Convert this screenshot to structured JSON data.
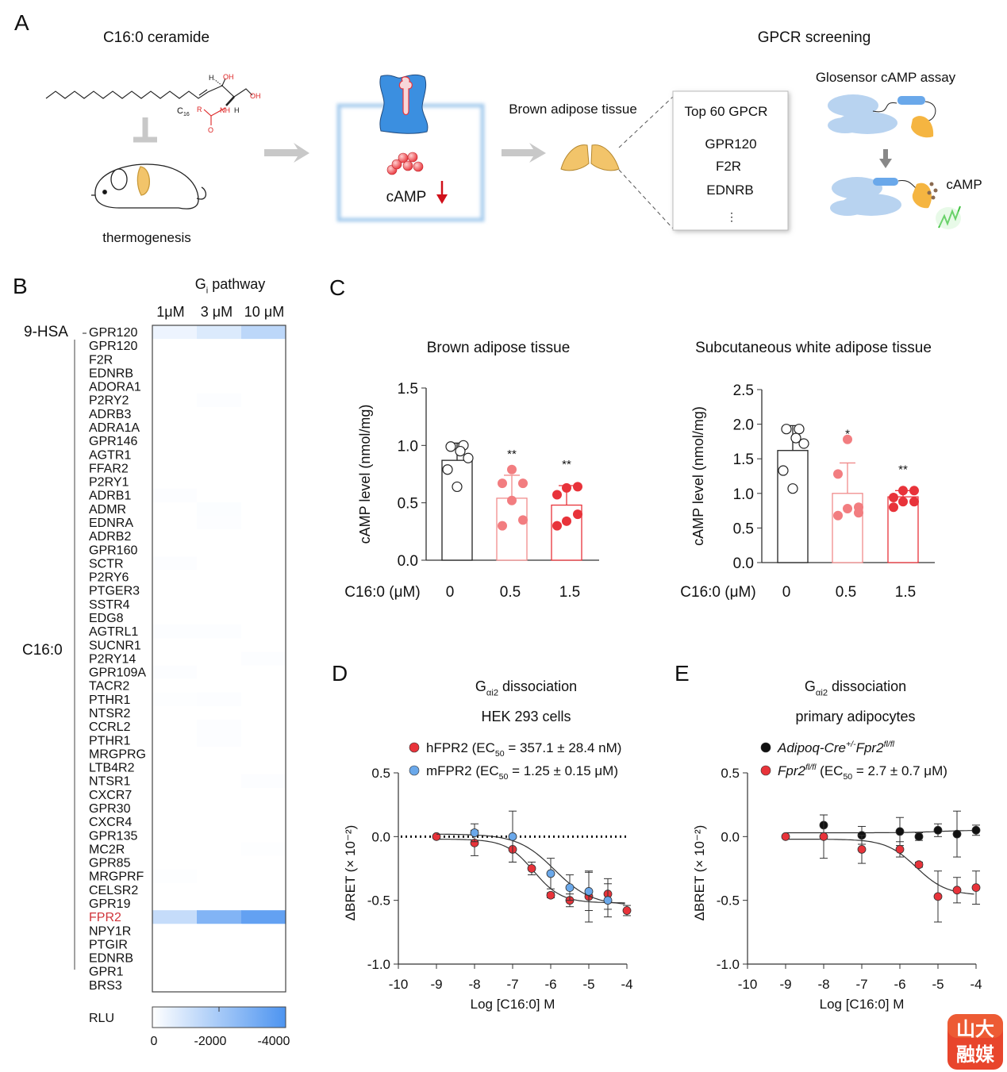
{
  "panel_labels": {
    "a": "A",
    "b": "B",
    "c": "C",
    "d": "D",
    "e": "E"
  },
  "panel_a": {
    "ceramide_title": "C16:0 ceramide",
    "structure_labels": {
      "h1": "H",
      "oh1": "OH",
      "oh2": "OH",
      "c16_main": "C",
      "c16_sub": "16",
      "r": "R",
      "nh": "NH",
      "h2": "H",
      "o": "O"
    },
    "thermogenesis": "thermogenesis",
    "camp": "cAMP",
    "brown_adipose_tissue": "Brown adipose tissue",
    "gpcr_screening": "GPCR screening",
    "box_title": "Top 60 GPCR",
    "box_items": [
      "GPR120",
      "F2R",
      "EDNRB",
      "⋮"
    ],
    "glosensor": "Glosensor cAMP assay",
    "camp_signal": "cAMP",
    "colors": {
      "receptor": "#3b8fe0",
      "camp": "#e8333a",
      "adipose": "#f2c46a",
      "arrow": "#c8c8c8"
    }
  },
  "watermark": {
    "text": "山大融媒",
    "color": "#e8452c"
  },
  "chart_data": [
    {
      "type": "heatmap",
      "title": {
        "main": "G",
        "sub": "i",
        "rest": " pathway"
      },
      "columns": [
        "1μM",
        "3 μM",
        "10 μM"
      ],
      "groups": [
        {
          "label": "9-HSA",
          "rows": [
            0,
            0
          ]
        },
        {
          "label": "C16:0",
          "rows": [
            1,
            48
          ]
        }
      ],
      "highlight_color": "#d0343a",
      "rows": [
        {
          "label": "GPR120",
          "values": [
            -400,
            -800,
            -1500
          ]
        },
        {
          "label": "GPR120",
          "values": [
            0,
            0,
            0
          ]
        },
        {
          "label": "F2R",
          "values": [
            0,
            0,
            0
          ]
        },
        {
          "label": "EDNRB",
          "values": [
            0,
            0,
            0
          ]
        },
        {
          "label": "ADORA1",
          "values": [
            0,
            0,
            0
          ]
        },
        {
          "label": "P2RY2",
          "values": [
            0,
            -60,
            0
          ]
        },
        {
          "label": "ADRB3",
          "values": [
            0,
            0,
            0
          ]
        },
        {
          "label": "ADRA1A",
          "values": [
            0,
            0,
            0
          ]
        },
        {
          "label": "GPR146",
          "values": [
            0,
            0,
            0
          ]
        },
        {
          "label": "AGTR1",
          "values": [
            0,
            0,
            0
          ]
        },
        {
          "label": "FFAR2",
          "values": [
            0,
            0,
            0
          ]
        },
        {
          "label": "P2RY1",
          "values": [
            0,
            0,
            0
          ]
        },
        {
          "label": "ADRB1",
          "values": [
            -60,
            0,
            0
          ]
        },
        {
          "label": "ADMR",
          "values": [
            0,
            -80,
            0
          ]
        },
        {
          "label": "EDNRA",
          "values": [
            0,
            -60,
            0
          ]
        },
        {
          "label": "ADRB2",
          "values": [
            0,
            0,
            0
          ]
        },
        {
          "label": "GPR160",
          "values": [
            0,
            0,
            0
          ]
        },
        {
          "label": "SCTR",
          "values": [
            -60,
            0,
            0
          ]
        },
        {
          "label": "P2RY6",
          "values": [
            0,
            0,
            0
          ]
        },
        {
          "label": "PTGER3",
          "values": [
            0,
            0,
            0
          ]
        },
        {
          "label": "SSTR4",
          "values": [
            0,
            0,
            0
          ]
        },
        {
          "label": "EDG8",
          "values": [
            0,
            0,
            0
          ]
        },
        {
          "label": "AGTRL1",
          "values": [
            -60,
            -60,
            0
          ]
        },
        {
          "label": "SUCNR1",
          "values": [
            0,
            0,
            0
          ]
        },
        {
          "label": "P2RY14",
          "values": [
            0,
            0,
            -60
          ]
        },
        {
          "label": "GPR109A",
          "values": [
            -60,
            0,
            0
          ]
        },
        {
          "label": "TACR2",
          "values": [
            0,
            0,
            0
          ]
        },
        {
          "label": "PTHR1",
          "values": [
            -40,
            -60,
            0
          ]
        },
        {
          "label": "NTSR2",
          "values": [
            0,
            0,
            0
          ]
        },
        {
          "label": "CCRL2",
          "values": [
            0,
            -70,
            0
          ]
        },
        {
          "label": "PTHR1",
          "values": [
            0,
            -60,
            0
          ]
        },
        {
          "label": "MRGPRG",
          "values": [
            0,
            0,
            0
          ]
        },
        {
          "label": "LTB4R2",
          "values": [
            0,
            0,
            0
          ]
        },
        {
          "label": "NTSR1",
          "values": [
            0,
            0,
            -60
          ]
        },
        {
          "label": "CXCR7",
          "values": [
            0,
            0,
            0
          ]
        },
        {
          "label": "GPR30",
          "values": [
            0,
            0,
            0
          ]
        },
        {
          "label": "CXCR4",
          "values": [
            0,
            0,
            0
          ]
        },
        {
          "label": "GPR135",
          "values": [
            0,
            0,
            0
          ]
        },
        {
          "label": "MC2R",
          "values": [
            0,
            0,
            -50
          ]
        },
        {
          "label": "GPR85",
          "values": [
            0,
            0,
            0
          ]
        },
        {
          "label": "MRGPRF",
          "values": [
            -50,
            0,
            0
          ]
        },
        {
          "label": "CELSR2",
          "values": [
            0,
            0,
            0
          ]
        },
        {
          "label": "GPR19",
          "values": [
            0,
            0,
            0
          ]
        },
        {
          "label": "FPR2",
          "values": [
            -1300,
            -2800,
            -3500
          ],
          "highlight": true
        },
        {
          "label": "NPY1R",
          "values": [
            0,
            0,
            0
          ]
        },
        {
          "label": "PTGIR",
          "values": [
            0,
            0,
            0
          ]
        },
        {
          "label": "EDNRB",
          "values": [
            0,
            0,
            0
          ]
        },
        {
          "label": "GPR1",
          "values": [
            0,
            0,
            0
          ]
        },
        {
          "label": "BRS3",
          "values": [
            0,
            0,
            0
          ]
        }
      ],
      "colorbar": {
        "label": "RLU",
        "range": [
          0,
          -4000
        ],
        "ticks": [
          "0",
          "-2000",
          "-4000"
        ],
        "colors": [
          "#ffffff",
          "#4d94f0"
        ]
      }
    },
    {
      "type": "bar",
      "title": "Brown adipose tissue",
      "xlabel": "C16:0 (μM)",
      "ylabel": "cAMP level (nmol/mg)",
      "categories": [
        "0",
        "0.5",
        "1.5"
      ],
      "ylim": [
        0,
        1.5
      ],
      "yticks": [
        "0.0",
        "0.5",
        "1.0",
        "1.5"
      ],
      "means": [
        0.87,
        0.54,
        0.48
      ],
      "sd": [
        0.15,
        0.2,
        0.17
      ],
      "points": [
        [
          0.99,
          1.0,
          0.95,
          0.89,
          0.79,
          0.64
        ],
        [
          0.79,
          0.67,
          0.67,
          0.52,
          0.35,
          0.3
        ],
        [
          0.63,
          0.64,
          0.57,
          0.4,
          0.34,
          0.3
        ]
      ],
      "significance": [
        "",
        "**",
        "**"
      ],
      "colors": [
        "#222222",
        "#f08c8c",
        "#e8333a"
      ]
    },
    {
      "type": "bar",
      "title": "Subcutaneous white adipose tissue",
      "xlabel": "C16:0 (μM)",
      "ylabel": "cAMP level (nmol/mg)",
      "categories": [
        "0",
        "0.5",
        "1.5"
      ],
      "ylim": [
        0,
        2.5
      ],
      "yticks": [
        "0.0",
        "0.5",
        "1.0",
        "1.5",
        "2.0",
        "2.5"
      ],
      "means": [
        1.62,
        1.0,
        0.95
      ],
      "sd": [
        0.36,
        0.44,
        0.09
      ],
      "points": [
        [
          1.93,
          1.93,
          1.8,
          1.72,
          1.33,
          1.07
        ],
        [
          1.78,
          1.28,
          0.8,
          0.78,
          0.72,
          0.68
        ],
        [
          1.04,
          1.04,
          0.94,
          0.88,
          0.88,
          0.8
        ]
      ],
      "significance": [
        "",
        "*",
        "**"
      ],
      "colors": [
        "#222222",
        "#f08c8c",
        "#e8333a"
      ]
    },
    {
      "type": "line",
      "title": {
        "main": "G",
        "sub": "αi2",
        "rest": " dissociation"
      },
      "subtitle": "HEK 293 cells",
      "xlabel": "Log [C16:0] M",
      "ylabel": "ΔBRET (× 10⁻²)",
      "xlim": [
        -10,
        -4
      ],
      "ylim": [
        -1.0,
        0.5
      ],
      "xticks": [
        "-10",
        "-9",
        "-8",
        "-7",
        "-6",
        "-5",
        "-4"
      ],
      "yticks": [
        "-1.0",
        "-0.5",
        "0.0",
        "0.5"
      ],
      "baseline_dotted": 0,
      "series": [
        {
          "name": {
            "pre": "hFPR2 (EC",
            "sub": "50",
            "post": " = 357.1 ± 28.4 nM)"
          },
          "color": "#e8333a",
          "x": [
            -9,
            -8,
            -7,
            -6.5,
            -6,
            -5.5,
            -5,
            -4.5,
            -4
          ],
          "y": [
            0,
            -0.05,
            -0.1,
            -0.25,
            -0.46,
            -0.5,
            -0.47,
            -0.45,
            -0.58
          ],
          "err": [
            0,
            0.1,
            0.1,
            0.05,
            0.02,
            0.05,
            0.2,
            0.12,
            0.04
          ],
          "fit": {
            "top": -0.02,
            "bottom": -0.52,
            "logEC50": -6.45,
            "hill": 1.2
          }
        },
        {
          "name": {
            "pre": "mFPR2 (EC",
            "sub": "50",
            "post": " = 1.25 ± 0.15 μM)"
          },
          "color": "#6aa8ea",
          "x": [
            -8,
            -7,
            -6,
            -5.5,
            -5,
            -4.5
          ],
          "y": [
            0.03,
            0.0,
            -0.29,
            -0.4,
            -0.43,
            -0.5
          ],
          "err": [
            0.07,
            0.2,
            0.12,
            0.1,
            0.15,
            0.13
          ],
          "fit": {
            "top": 0.02,
            "bottom": -0.54,
            "logEC50": -5.9,
            "hill": 0.9
          }
        }
      ]
    },
    {
      "type": "line",
      "title": {
        "main": "G",
        "sub": "αi2",
        "rest": " dissociation"
      },
      "subtitle": "primary adipocytes",
      "xlabel": "Log [C16:0] M",
      "ylabel": "ΔBRET (× 10⁻²)",
      "xlim": [
        -10,
        -4
      ],
      "ylim": [
        -1.0,
        0.5
      ],
      "xticks": [
        "-10",
        "-9",
        "-8",
        "-7",
        "-6",
        "-5",
        "-4"
      ],
      "yticks": [
        "-1.0",
        "-0.5",
        "0.0",
        "0.5"
      ],
      "series": [
        {
          "name": {
            "pre": "Adipoq-Cre",
            "sup": "+/-",
            "pre2": "Fpr2",
            "sup2": "fl/fl"
          },
          "color": "#111111",
          "x": [
            -8,
            -7,
            -6,
            -5.5,
            -5,
            -4.5,
            -4
          ],
          "y": [
            0.09,
            0.01,
            0.04,
            0.0,
            0.05,
            0.02,
            0.05
          ],
          "err": [
            0.08,
            0.07,
            0.11,
            0.03,
            0.05,
            0.18,
            0.04
          ],
          "fit": {
            "top": 0.03,
            "bottom": 0.05,
            "logEC50": -5,
            "hill": 1
          }
        },
        {
          "name": {
            "pre": "Fpr2",
            "sup": "fl/fl",
            "post": " (EC",
            "sub": "50",
            "post2": " = 2.7 ± 0.7 μM)"
          },
          "color": "#e8333a",
          "x": [
            -9,
            -8,
            -7,
            -6,
            -5.5,
            -5,
            -4.5,
            -4
          ],
          "y": [
            0,
            0,
            -0.1,
            -0.1,
            -0.22,
            -0.47,
            -0.42,
            -0.4
          ],
          "err": [
            0,
            0.17,
            0.11,
            0.06,
            0.02,
            0.2,
            0.1,
            0.13
          ],
          "fit": {
            "top": -0.02,
            "bottom": -0.46,
            "logEC50": -5.57,
            "hill": 1.1
          }
        }
      ]
    }
  ]
}
